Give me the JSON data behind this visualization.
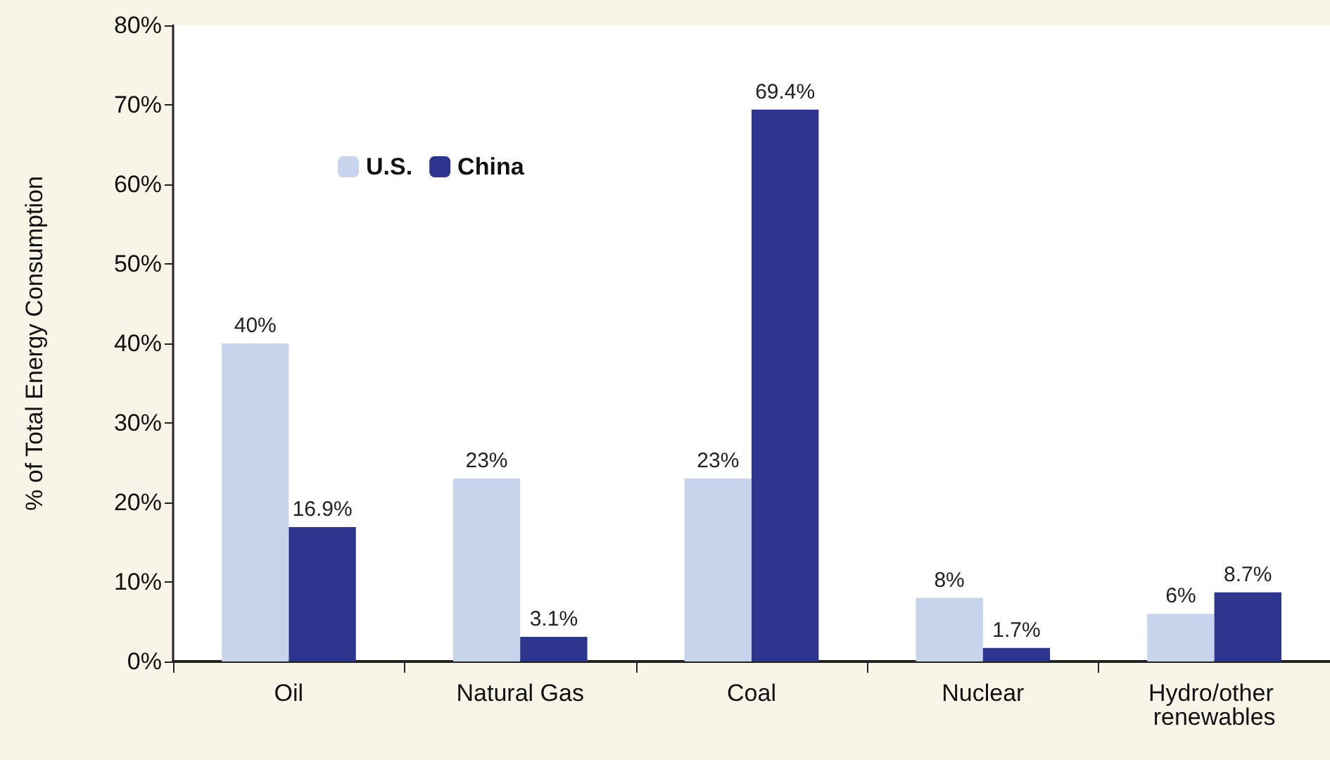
{
  "chart_data": {
    "type": "bar",
    "ylabel": "% of Total Energy Consumption",
    "categories": [
      "Oil",
      "Natural Gas",
      "Coal",
      "Nuclear",
      "Hydro/other renewables"
    ],
    "series": [
      {
        "name": "U.S.",
        "color": "#c8d4ec",
        "values": [
          40,
          23,
          23,
          8,
          6
        ],
        "value_labels": [
          "40%",
          "23%",
          "23%",
          "8%",
          "6%"
        ]
      },
      {
        "name": "China",
        "color": "#2e358f",
        "values": [
          16.9,
          3.1,
          69.4,
          1.7,
          8.7
        ],
        "value_labels": [
          "16.9%",
          "3.1%",
          "69.4%",
          "1.7%",
          "8.7%"
        ]
      }
    ],
    "ylim": [
      0,
      80
    ],
    "yticks": [
      {
        "value": 0,
        "label": "0%"
      },
      {
        "value": 10,
        "label": "10%"
      },
      {
        "value": 20,
        "label": "20%"
      },
      {
        "value": 30,
        "label": "30%"
      },
      {
        "value": 40,
        "label": "40%"
      },
      {
        "value": 50,
        "label": "50%"
      },
      {
        "value": 60,
        "label": "60%"
      },
      {
        "value": 70,
        "label": "70%"
      },
      {
        "value": 80,
        "label": "80%"
      }
    ],
    "grid": false,
    "legend": "top left"
  }
}
